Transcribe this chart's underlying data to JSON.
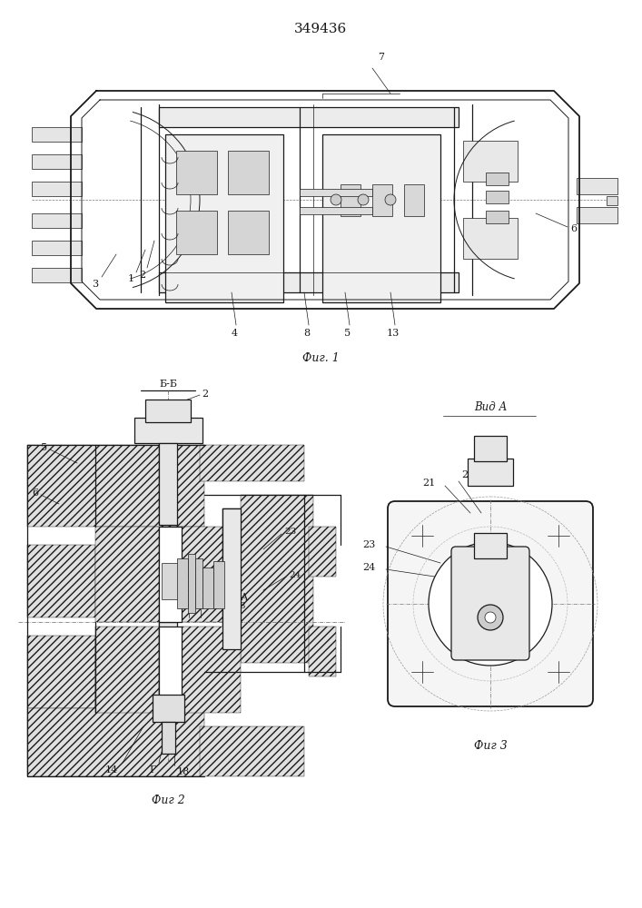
{
  "title": "349436",
  "fig1_caption": "Фиг. 1",
  "fig2_caption": "Фиг 2",
  "fig3_caption": "Фиг 3",
  "vid_a_label": "Вид А",
  "bb_label": "Б-Б",
  "bg_color": "#ffffff",
  "line_color": "#1a1a1a",
  "gray_light": "#e8e8e8",
  "gray_mid": "#d0d0d0",
  "gray_dark": "#b0b0b0",
  "hatch_gray": "#c0c0c0"
}
